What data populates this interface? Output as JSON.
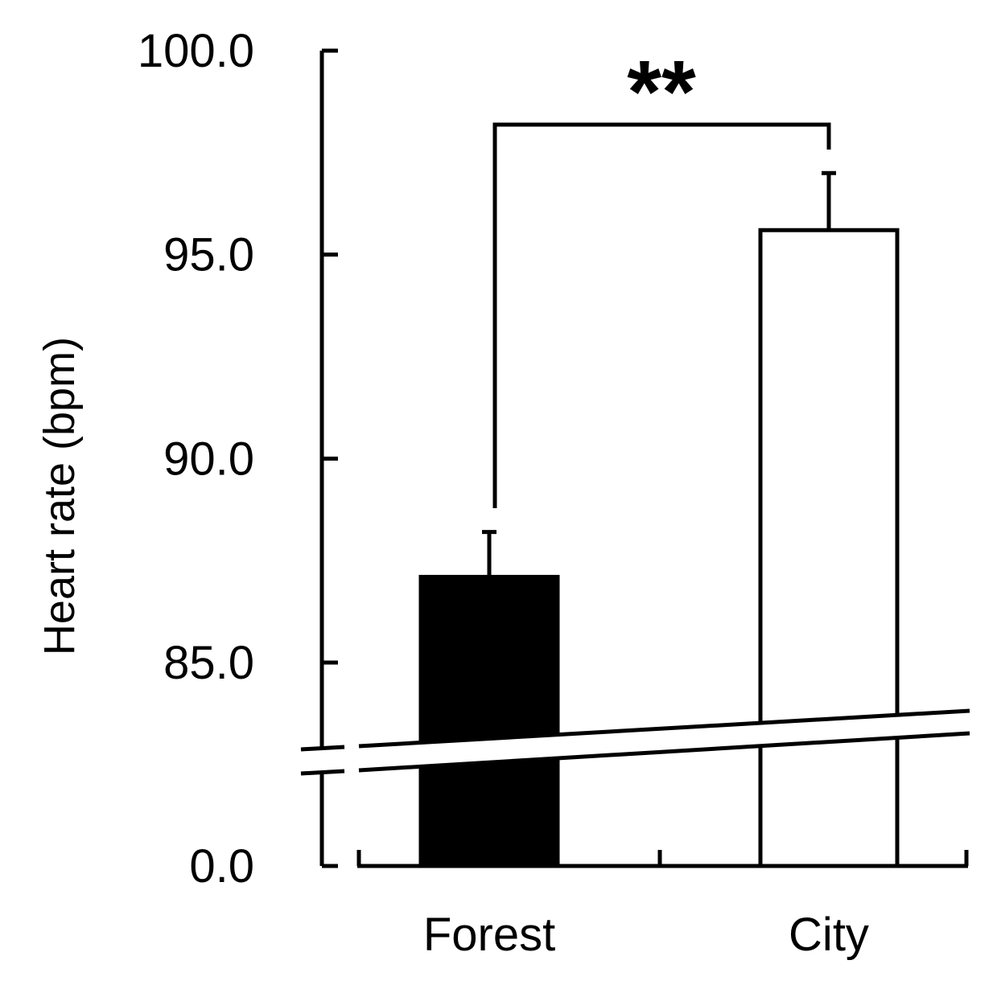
{
  "chart_data": {
    "type": "bar",
    "categories": [
      "Forest",
      "City"
    ],
    "series": [
      {
        "values": [
          87.1,
          95.6
        ],
        "errors": [
          1.1,
          1.4
        ],
        "colors": [
          "#000000",
          "#ffffff"
        ]
      }
    ],
    "xlabel": "",
    "ylabel": "Heart rate (bpm)",
    "ylim": [
      0.0,
      100.0
    ],
    "axis_break": true,
    "y_ticks_upper": [
      85.0,
      90.0,
      95.0,
      100.0
    ],
    "y_tick_labels": [
      "0.0",
      "85.0",
      "90.0",
      "95.0",
      "100.0"
    ],
    "significance": {
      "between": [
        "Forest",
        "City"
      ],
      "label": "**"
    },
    "grid": false,
    "legend": "none"
  }
}
